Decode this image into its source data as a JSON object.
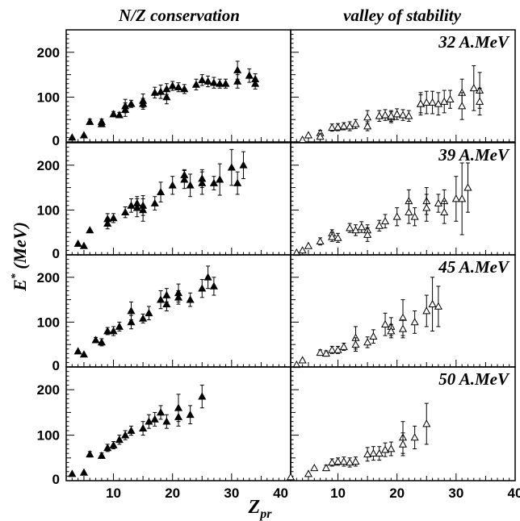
{
  "column_titles": {
    "left": "N/Z conservation",
    "right": "valley of stability"
  },
  "ylabel": {
    "main": "E",
    "sup": "*",
    "unit": " (MeV)"
  },
  "xlabel": {
    "main": "Z",
    "sub": "pr"
  },
  "x_tick_labels": [
    "10",
    "20",
    "30",
    "40"
  ],
  "y_tick_labels": [
    "0",
    "100",
    "200"
  ],
  "energy_labels": [
    "32 A.MeV",
    "39 A.MeV",
    "45 A.MeV",
    "50 A.MeV"
  ],
  "marker_colors": {
    "filled": "#000000",
    "open": "#ffffff"
  },
  "chart_data": [
    {
      "type": "scatter",
      "energy": "32 A.MeV",
      "panel": "N/Z conservation",
      "marker": "filled-triangle",
      "xlim": [
        2,
        40
      ],
      "ylim": [
        0,
        250
      ],
      "ytick_step": 100,
      "x": [
        3,
        5,
        6,
        8,
        8,
        10,
        11,
        12,
        12,
        13,
        15,
        15,
        17,
        18,
        19,
        19,
        20,
        21,
        22,
        24,
        25,
        26,
        27,
        28,
        29,
        31,
        31,
        33,
        34,
        34
      ],
      "y": [
        10,
        15,
        45,
        45,
        40,
        62,
        60,
        80,
        72,
        85,
        92,
        85,
        110,
        112,
        100,
        118,
        125,
        122,
        118,
        128,
        138,
        135,
        132,
        130,
        130,
        160,
        135,
        148,
        140,
        130
      ],
      "err": [
        0,
        0,
        6,
        6,
        6,
        6,
        6,
        15,
        15,
        8,
        15,
        12,
        12,
        15,
        15,
        12,
        10,
        10,
        10,
        12,
        12,
        12,
        12,
        10,
        10,
        20,
        15,
        15,
        12,
        12
      ]
    },
    {
      "type": "scatter",
      "energy": "32 A.MeV",
      "panel": "valley of stability",
      "marker": "open-triangle",
      "xlim": [
        2,
        40
      ],
      "ylim": [
        0,
        250
      ],
      "ytick_step": 100,
      "x": [
        4,
        5,
        7,
        7,
        9,
        10,
        11,
        12,
        13,
        15,
        15,
        17,
        18,
        19,
        19,
        20,
        21,
        22,
        24,
        24,
        25,
        26,
        27,
        28,
        29,
        31,
        31,
        33,
        34,
        34
      ],
      "y": [
        5,
        15,
        20,
        12,
        32,
        33,
        35,
        35,
        40,
        55,
        35,
        58,
        60,
        55,
        58,
        62,
        60,
        58,
        85,
        85,
        88,
        88,
        85,
        90,
        95,
        110,
        80,
        120,
        115,
        90
      ],
      "err": [
        0,
        0,
        6,
        6,
        8,
        8,
        8,
        10,
        10,
        15,
        10,
        12,
        12,
        12,
        12,
        12,
        12,
        12,
        25,
        20,
        25,
        25,
        25,
        25,
        20,
        30,
        30,
        50,
        40,
        30
      ]
    },
    {
      "type": "scatter",
      "energy": "39 A.MeV",
      "panel": "N/Z conservation",
      "marker": "filled-triangle",
      "xlim": [
        2,
        40
      ],
      "ylim": [
        0,
        250
      ],
      "ytick_step": 100,
      "x": [
        4,
        5,
        6,
        9,
        9,
        10,
        12,
        13,
        14,
        14,
        15,
        15,
        17,
        18,
        20,
        22,
        22,
        23,
        25,
        25,
        27,
        28,
        30,
        31,
        32
      ],
      "y": [
        25,
        20,
        55,
        80,
        70,
        82,
        95,
        110,
        115,
        105,
        110,
        100,
        115,
        140,
        155,
        178,
        168,
        155,
        170,
        160,
        160,
        168,
        195,
        160,
        200
      ],
      "err": [
        0,
        0,
        0,
        12,
        12,
        10,
        12,
        15,
        15,
        20,
        22,
        25,
        15,
        22,
        20,
        12,
        20,
        25,
        20,
        25,
        15,
        35,
        40,
        25,
        30
      ]
    },
    {
      "type": "scatter",
      "energy": "39 A.MeV",
      "panel": "valley of stability",
      "marker": "open-triangle",
      "xlim": [
        2,
        40
      ],
      "ylim": [
        0,
        250
      ],
      "ytick_step": 100,
      "x": [
        3,
        4,
        5,
        7,
        9,
        9,
        10,
        12,
        13,
        14,
        15,
        15,
        17,
        18,
        20,
        22,
        22,
        23,
        25,
        25,
        27,
        28,
        28,
        30,
        31,
        32
      ],
      "y": [
        5,
        10,
        20,
        30,
        48,
        40,
        38,
        60,
        55,
        62,
        55,
        45,
        65,
        75,
        85,
        120,
        95,
        85,
        120,
        105,
        115,
        120,
        95,
        125,
        125,
        150
      ],
      "err": [
        0,
        0,
        0,
        8,
        8,
        10,
        10,
        10,
        12,
        12,
        12,
        15,
        12,
        15,
        20,
        25,
        25,
        20,
        30,
        30,
        20,
        25,
        25,
        50,
        80,
        55
      ]
    },
    {
      "type": "scatter",
      "energy": "45 A.MeV",
      "panel": "N/Z conservation",
      "marker": "filled-triangle",
      "xlim": [
        2,
        40
      ],
      "ylim": [
        0,
        250
      ],
      "ytick_step": 100,
      "x": [
        4,
        5,
        7,
        8,
        9,
        10,
        11,
        13,
        13,
        15,
        16,
        18,
        19,
        19,
        21,
        21,
        23,
        25,
        26,
        27
      ],
      "y": [
        35,
        28,
        60,
        55,
        80,
        80,
        90,
        125,
        100,
        108,
        120,
        150,
        160,
        140,
        165,
        155,
        150,
        175,
        200,
        180
      ],
      "err": [
        0,
        0,
        6,
        8,
        8,
        10,
        10,
        20,
        15,
        10,
        15,
        20,
        15,
        15,
        20,
        15,
        15,
        20,
        25,
        20
      ]
    },
    {
      "type": "scatter",
      "energy": "45 A.MeV",
      "panel": "valley of stability",
      "marker": "open-triangle",
      "xlim": [
        2,
        40
      ],
      "ylim": [
        0,
        250
      ],
      "ytick_step": 100,
      "x": [
        3,
        4,
        7,
        8,
        9,
        10,
        11,
        13,
        13,
        15,
        16,
        18,
        19,
        19,
        21,
        21,
        23,
        25,
        26,
        27
      ],
      "y": [
        5,
        15,
        32,
        30,
        38,
        38,
        45,
        65,
        50,
        55,
        68,
        95,
        90,
        80,
        110,
        85,
        100,
        125,
        140,
        135
      ],
      "err": [
        0,
        0,
        6,
        6,
        8,
        8,
        8,
        25,
        15,
        12,
        15,
        25,
        20,
        15,
        40,
        20,
        25,
        35,
        60,
        45
      ]
    },
    {
      "type": "scatter",
      "energy": "50 A.MeV",
      "panel": "N/Z conservation",
      "marker": "filled-triangle",
      "xlim": [
        2,
        40
      ],
      "ylim": [
        0,
        250
      ],
      "ytick_step": 100,
      "x": [
        3,
        5,
        6,
        8,
        9,
        10,
        11,
        12,
        13,
        15,
        16,
        17,
        18,
        19,
        21,
        21,
        23,
        25
      ],
      "y": [
        15,
        18,
        58,
        55,
        72,
        78,
        90,
        100,
        110,
        115,
        130,
        135,
        150,
        130,
        160,
        140,
        145,
        185
      ],
      "err": [
        0,
        0,
        6,
        6,
        8,
        8,
        10,
        10,
        10,
        15,
        15,
        15,
        15,
        15,
        30,
        20,
        20,
        25
      ]
    },
    {
      "type": "scatter",
      "energy": "50 A.MeV",
      "panel": "valley of stability",
      "marker": "open-triangle",
      "xlim": [
        2,
        40
      ],
      "ylim": [
        0,
        250
      ],
      "ytick_step": 100,
      "x": [
        2,
        5,
        6,
        8,
        9,
        10,
        11,
        12,
        13,
        15,
        16,
        17,
        18,
        19,
        21,
        21,
        23,
        25
      ],
      "y": [
        8,
        15,
        28,
        28,
        40,
        42,
        42,
        40,
        42,
        58,
        60,
        60,
        68,
        70,
        95,
        80,
        95,
        125
      ],
      "err": [
        0,
        0,
        0,
        6,
        8,
        8,
        10,
        10,
        10,
        15,
        15,
        15,
        15,
        15,
        35,
        25,
        25,
        45
      ]
    }
  ]
}
